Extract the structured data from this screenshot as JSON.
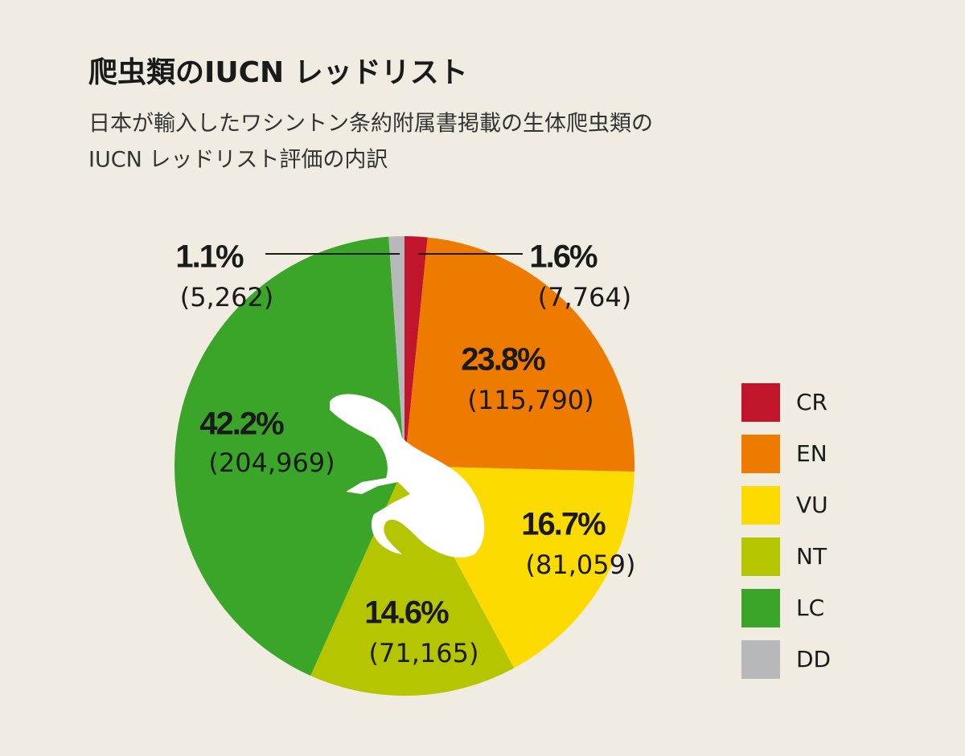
{
  "chart_data": {
    "type": "pie",
    "title": "爬虫類のIUCN レッドリスト",
    "subtitle": [
      "日本が輸入したワシントン条約附属書掲載の生体爬虫類の",
      "IUCN レッドリスト評価の内訳"
    ],
    "categories": [
      "CR",
      "EN",
      "VU",
      "NT",
      "LC",
      "DD"
    ],
    "values": [
      1.6,
      23.8,
      16.7,
      14.6,
      42.2,
      1.1
    ],
    "value_labels": [
      "1.6%",
      "23.8%",
      "16.7%",
      "14.6%",
      "42.2%",
      "1.1%"
    ],
    "counts": [
      {
        "value": 7764,
        "label": "(7,764)"
      },
      {
        "value": 115790,
        "label": "(115,790)"
      },
      {
        "value": 81059,
        "label": "(81,059)"
      },
      {
        "value": 71165,
        "label": "(71,165)"
      },
      {
        "value": 204969,
        "label": "(204,969)"
      },
      {
        "value": 5262,
        "label": "(5,262)"
      }
    ],
    "colors": [
      "#c0152a",
      "#ee7a00",
      "#fddb00",
      "#b5c600",
      "#3aa528",
      "#b7b8ba"
    ],
    "legend": "right"
  }
}
